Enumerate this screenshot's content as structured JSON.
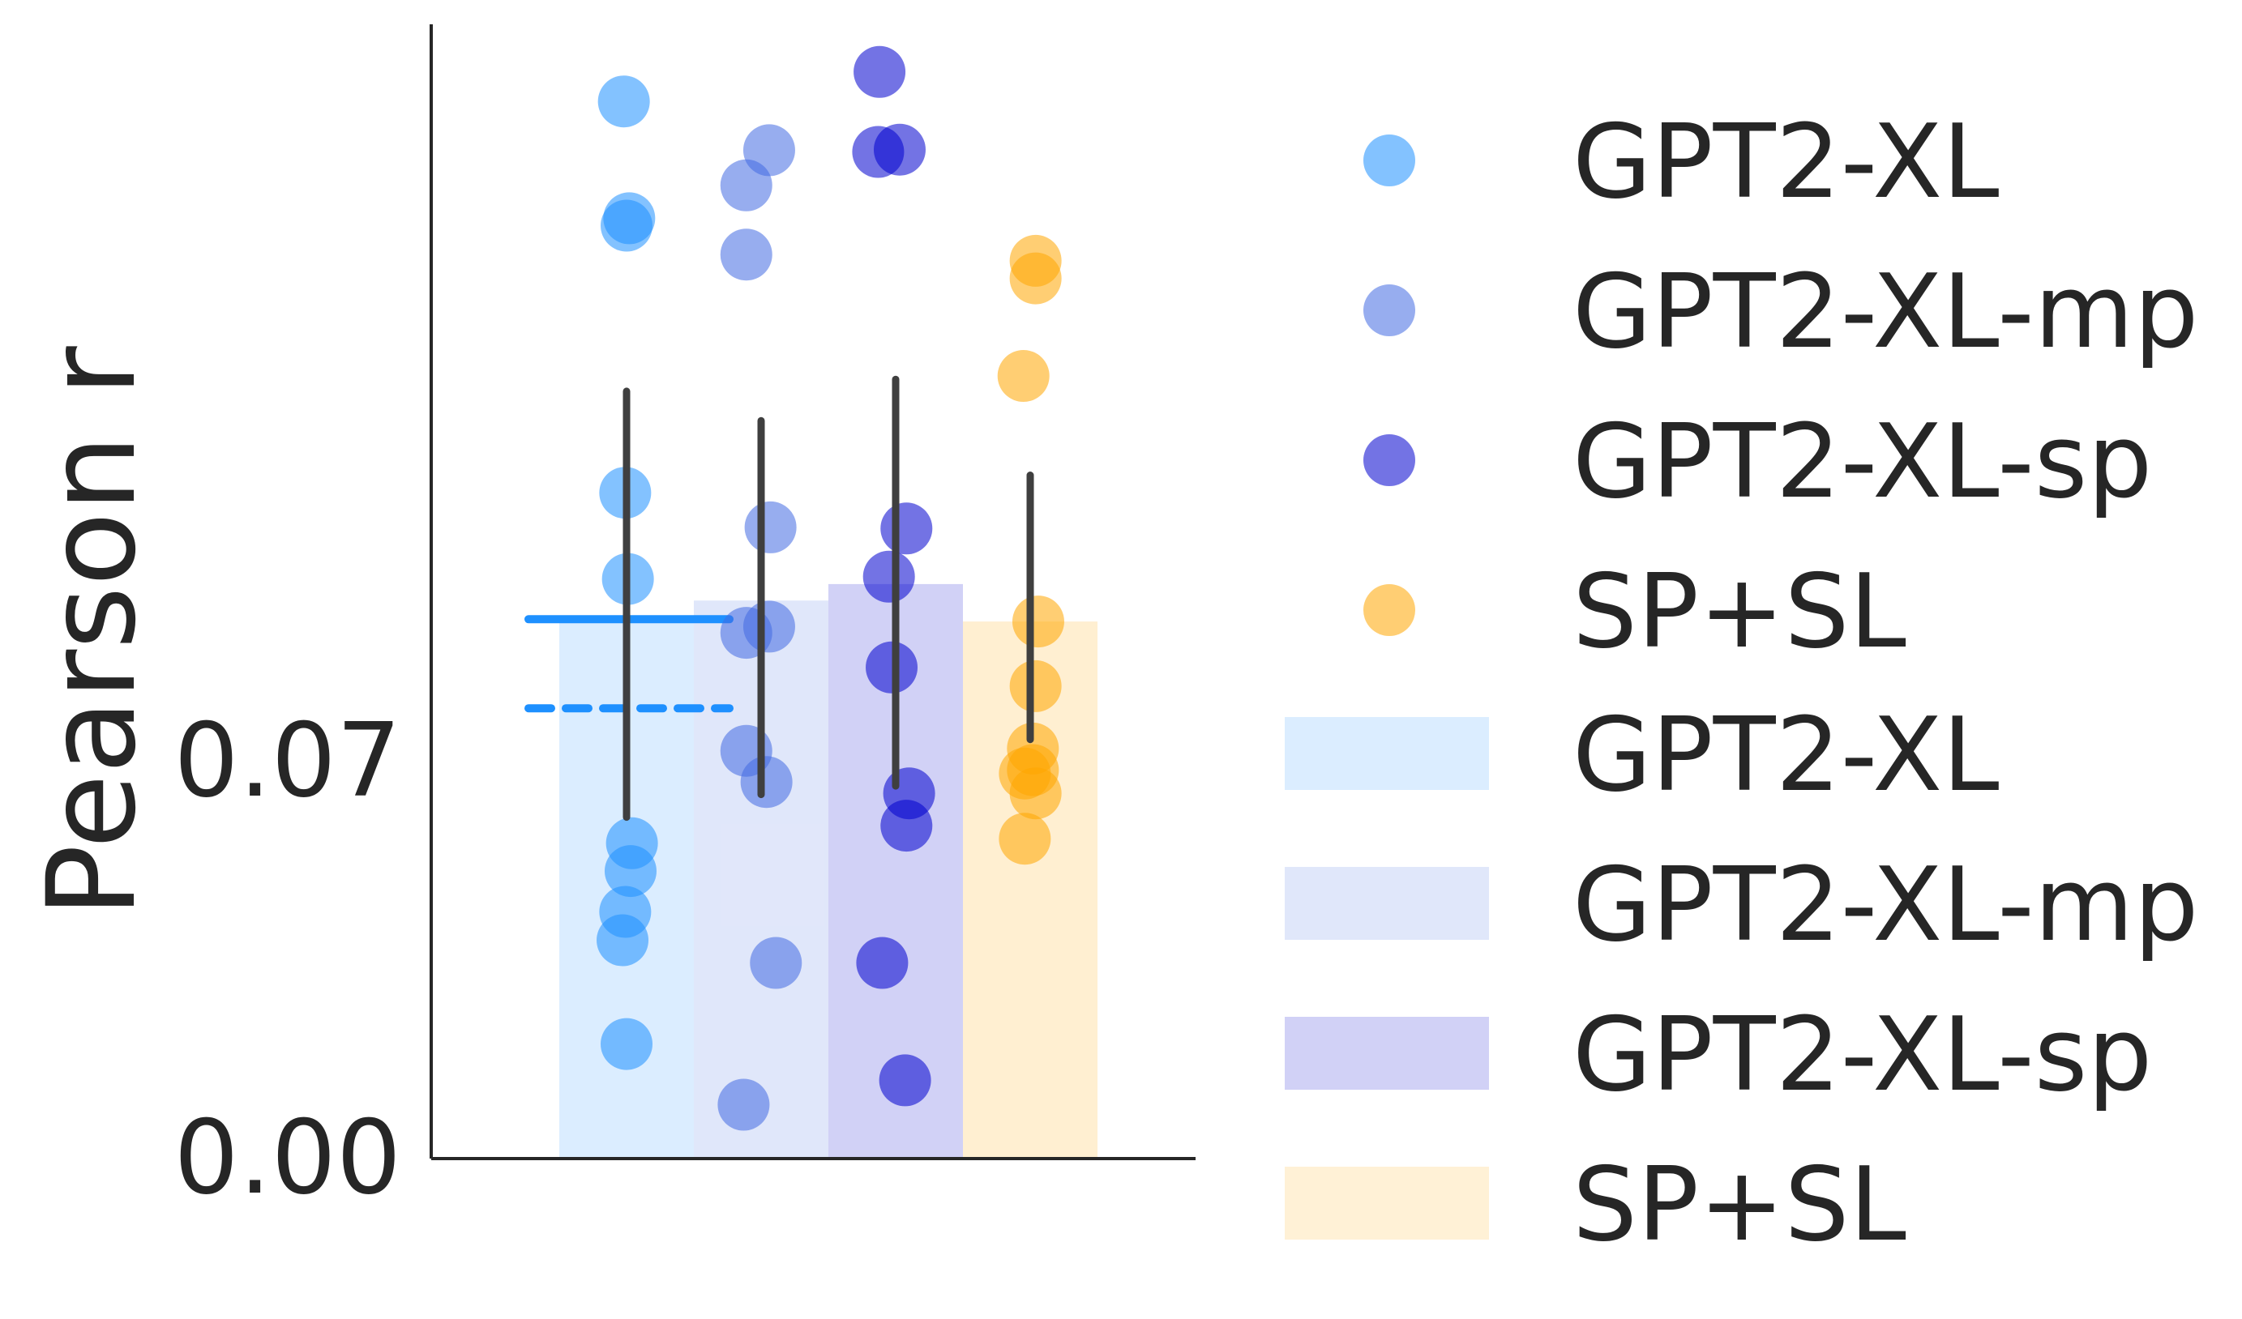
{
  "chart_data": {
    "type": "bar",
    "title": "",
    "xlabel": "",
    "ylabel": "Pearson r",
    "ylim": [
      0,
      0.2
    ],
    "yticks": [
      0.0,
      0.07
    ],
    "ytick_labels": [
      "0.00",
      "0.07"
    ],
    "grid": false,
    "legend_placement": "right, outside plot",
    "series": [
      {
        "name": "GPT2-XL",
        "color": "#1e90ff",
        "bar_value": 0.0951,
        "error_bar": [
          0.0602,
          0.1353
        ],
        "points": [
          {
            "x": -0.02,
            "y": 0.1864
          },
          {
            "x": 0.02,
            "y": 0.1658
          },
          {
            "x": 0.0,
            "y": 0.1645
          },
          {
            "x": -0.01,
            "y": 0.1174
          },
          {
            "x": 0.01,
            "y": 0.1022
          },
          {
            "x": 0.04,
            "y": 0.0556
          },
          {
            "x": 0.03,
            "y": 0.0507
          },
          {
            "x": -0.01,
            "y": 0.0435
          },
          {
            "x": -0.03,
            "y": 0.0385
          },
          {
            "x": 0.0,
            "y": 0.0202
          }
        ]
      },
      {
        "name": "GPT2-XL-mp",
        "color": "#4169e1",
        "bar_value": 0.0984,
        "error_bar": [
          0.0642,
          0.1301
        ],
        "points": [
          {
            "x": 0.06,
            "y": 0.1778
          },
          {
            "x": -0.11,
            "y": 0.1716
          },
          {
            "x": -0.11,
            "y": 0.1594
          },
          {
            "x": 0.07,
            "y": 0.1113
          },
          {
            "x": 0.06,
            "y": 0.0938
          },
          {
            "x": -0.11,
            "y": 0.0927
          },
          {
            "x": -0.11,
            "y": 0.0719
          },
          {
            "x": 0.04,
            "y": 0.0664
          },
          {
            "x": 0.11,
            "y": 0.0345
          },
          {
            "x": -0.13,
            "y": 0.0095
          }
        ]
      },
      {
        "name": "GPT2-XL-sp",
        "color": "#0000cd",
        "bar_value": 0.1013,
        "error_bar": [
          0.0657,
          0.1374
        ],
        "points": [
          {
            "x": -0.12,
            "y": 0.1916
          },
          {
            "x": -0.13,
            "y": 0.1775
          },
          {
            "x": 0.03,
            "y": 0.1779
          },
          {
            "x": 0.08,
            "y": 0.1111
          },
          {
            "x": -0.05,
            "y": 0.1026
          },
          {
            "x": -0.03,
            "y": 0.0866
          },
          {
            "x": 0.1,
            "y": 0.0644
          },
          {
            "x": 0.08,
            "y": 0.0587
          },
          {
            "x": -0.1,
            "y": 0.0345
          },
          {
            "x": 0.07,
            "y": 0.0138
          }
        ]
      },
      {
        "name": "SP+SL",
        "color": "#ffa500",
        "bar_value": 0.0947,
        "error_bar": [
          0.0739,
          0.1205
        ],
        "points": [
          {
            "x": 0.04,
            "y": 0.1583
          },
          {
            "x": 0.04,
            "y": 0.1552
          },
          {
            "x": -0.05,
            "y": 0.138
          },
          {
            "x": 0.06,
            "y": 0.0947
          },
          {
            "x": 0.04,
            "y": 0.0833
          },
          {
            "x": 0.02,
            "y": 0.0723
          },
          {
            "x": 0.02,
            "y": 0.0685
          },
          {
            "x": 0.04,
            "y": 0.0644
          },
          {
            "x": -0.04,
            "y": 0.0679
          },
          {
            "x": -0.04,
            "y": 0.0564
          }
        ]
      }
    ],
    "reference_lines": [
      {
        "style": "solid",
        "color": "#1e90ff",
        "y": 0.0951
      },
      {
        "style": "dashed",
        "color": "#1e90ff",
        "y": 0.0794
      }
    ]
  },
  "legend": {
    "point_items": [
      {
        "label": "GPT2-XL",
        "color": "#1e90ff"
      },
      {
        "label": "GPT2-XL-mp",
        "color": "#4169e1"
      },
      {
        "label": "GPT2-XL-sp",
        "color": "#0000cd"
      },
      {
        "label": "SP+SL",
        "color": "#ffa500"
      }
    ],
    "bar_items": [
      {
        "label": "GPT2-XL",
        "color": "#1e90ff"
      },
      {
        "label": "GPT2-XL-mp",
        "color": "#4169e1"
      },
      {
        "label": "GPT2-XL-sp",
        "color": "#0000cd"
      },
      {
        "label": "SP+SL",
        "color": "#ffa500"
      }
    ]
  }
}
